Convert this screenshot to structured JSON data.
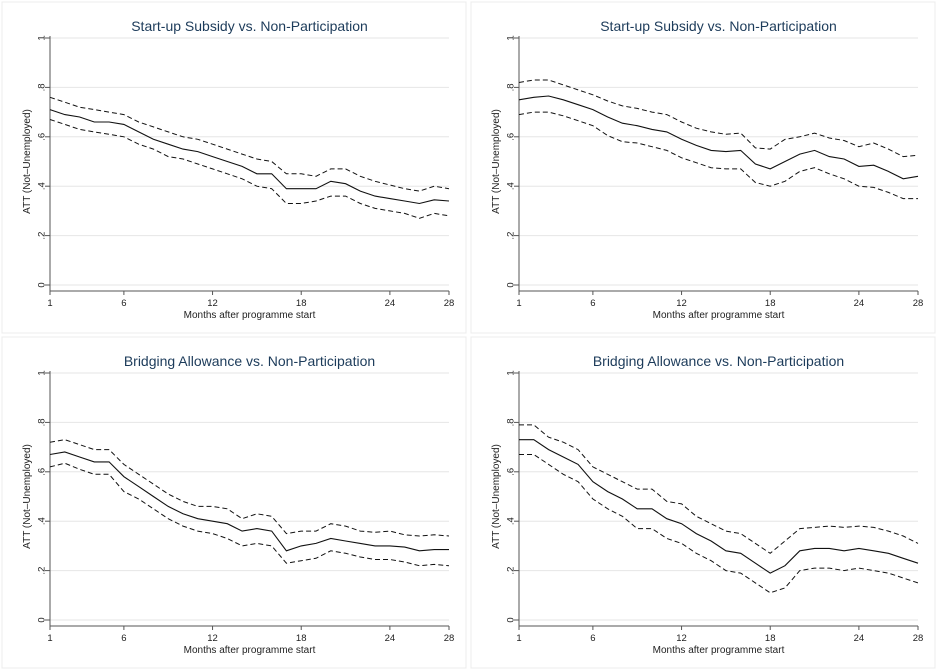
{
  "chart_data": [
    {
      "type": "line",
      "title": "Start-up Subsidy vs. Non-Participation",
      "xlabel": "Months after programme start",
      "ylabel": "ATT (Not–Unemployed)",
      "xlim": [
        1,
        28
      ],
      "ylim": [
        0,
        1
      ],
      "xticks": [
        1,
        6,
        12,
        18,
        24,
        28
      ],
      "yticks": [
        0,
        0.2,
        0.4,
        0.6,
        0.8,
        1
      ],
      "ytick_labels": [
        "0",
        ".2",
        ".4",
        ".6",
        ".8",
        "1"
      ],
      "grid": true,
      "x": [
        1,
        2,
        3,
        4,
        5,
        6,
        7,
        8,
        9,
        10,
        11,
        12,
        13,
        14,
        15,
        16,
        17,
        18,
        19,
        20,
        21,
        22,
        23,
        24,
        25,
        26,
        27,
        28
      ],
      "series": [
        {
          "role": "estimate",
          "values": [
            0.71,
            0.69,
            0.68,
            0.66,
            0.66,
            0.65,
            0.62,
            0.59,
            0.57,
            0.55,
            0.54,
            0.52,
            0.5,
            0.48,
            0.45,
            0.45,
            0.39,
            0.39,
            0.39,
            0.42,
            0.41,
            0.38,
            0.36,
            0.35,
            0.34,
            0.33,
            0.345,
            0.34
          ]
        },
        {
          "role": "upper_ci",
          "values": [
            0.76,
            0.74,
            0.72,
            0.71,
            0.7,
            0.69,
            0.66,
            0.64,
            0.62,
            0.6,
            0.59,
            0.57,
            0.55,
            0.53,
            0.51,
            0.5,
            0.45,
            0.45,
            0.44,
            0.47,
            0.47,
            0.44,
            0.42,
            0.405,
            0.39,
            0.38,
            0.4,
            0.39
          ]
        },
        {
          "role": "lower_ci",
          "values": [
            0.67,
            0.65,
            0.63,
            0.62,
            0.61,
            0.6,
            0.57,
            0.55,
            0.52,
            0.51,
            0.49,
            0.47,
            0.45,
            0.43,
            0.4,
            0.39,
            0.33,
            0.33,
            0.34,
            0.36,
            0.36,
            0.33,
            0.31,
            0.3,
            0.29,
            0.27,
            0.29,
            0.28
          ]
        }
      ]
    },
    {
      "type": "line",
      "title": "Start-up Subsidy vs. Non-Participation",
      "xlabel": "Months after programme start",
      "ylabel": "ATT (Not–Unemployed)",
      "xlim": [
        1,
        28
      ],
      "ylim": [
        0,
        1
      ],
      "xticks": [
        1,
        6,
        12,
        18,
        24,
        28
      ],
      "yticks": [
        0,
        0.2,
        0.4,
        0.6,
        0.8,
        1
      ],
      "ytick_labels": [
        "0",
        ".2",
        ".4",
        ".6",
        ".8",
        "1"
      ],
      "grid": true,
      "x": [
        1,
        2,
        3,
        4,
        5,
        6,
        7,
        8,
        9,
        10,
        11,
        12,
        13,
        14,
        15,
        16,
        17,
        18,
        19,
        20,
        21,
        22,
        23,
        24,
        25,
        26,
        27,
        28
      ],
      "series": [
        {
          "role": "estimate",
          "values": [
            0.75,
            0.76,
            0.765,
            0.75,
            0.73,
            0.71,
            0.68,
            0.655,
            0.645,
            0.63,
            0.62,
            0.59,
            0.565,
            0.545,
            0.54,
            0.545,
            0.49,
            0.47,
            0.5,
            0.53,
            0.545,
            0.52,
            0.51,
            0.48,
            0.485,
            0.46,
            0.43,
            0.44
          ]
        },
        {
          "role": "upper_ci",
          "values": [
            0.82,
            0.83,
            0.83,
            0.81,
            0.79,
            0.77,
            0.745,
            0.725,
            0.715,
            0.7,
            0.69,
            0.66,
            0.635,
            0.62,
            0.61,
            0.615,
            0.555,
            0.55,
            0.59,
            0.6,
            0.615,
            0.595,
            0.585,
            0.56,
            0.575,
            0.55,
            0.52,
            0.525
          ]
        },
        {
          "role": "lower_ci",
          "values": [
            0.69,
            0.7,
            0.7,
            0.685,
            0.665,
            0.645,
            0.605,
            0.58,
            0.575,
            0.56,
            0.545,
            0.515,
            0.495,
            0.475,
            0.47,
            0.47,
            0.415,
            0.4,
            0.42,
            0.46,
            0.475,
            0.45,
            0.43,
            0.4,
            0.395,
            0.375,
            0.35,
            0.35
          ]
        }
      ]
    },
    {
      "type": "line",
      "title": "Bridging Allowance vs. Non-Participation",
      "xlabel": "Months after programme start",
      "ylabel": "ATT (Not–Unemployed)",
      "xlim": [
        1,
        28
      ],
      "ylim": [
        0,
        1
      ],
      "xticks": [
        1,
        6,
        12,
        18,
        24,
        28
      ],
      "yticks": [
        0,
        0.2,
        0.4,
        0.6,
        0.8,
        1
      ],
      "ytick_labels": [
        "0",
        ".2",
        ".4",
        ".6",
        ".8",
        "1"
      ],
      "grid": true,
      "x": [
        1,
        2,
        3,
        4,
        5,
        6,
        7,
        8,
        9,
        10,
        11,
        12,
        13,
        14,
        15,
        16,
        17,
        18,
        19,
        20,
        21,
        22,
        23,
        24,
        25,
        26,
        27,
        28
      ],
      "series": [
        {
          "role": "estimate",
          "values": [
            0.67,
            0.68,
            0.66,
            0.64,
            0.64,
            0.58,
            0.54,
            0.5,
            0.46,
            0.43,
            0.41,
            0.4,
            0.39,
            0.36,
            0.37,
            0.36,
            0.28,
            0.3,
            0.31,
            0.33,
            0.32,
            0.31,
            0.3,
            0.3,
            0.295,
            0.28,
            0.285,
            0.285
          ]
        },
        {
          "role": "upper_ci",
          "values": [
            0.72,
            0.73,
            0.71,
            0.69,
            0.69,
            0.63,
            0.59,
            0.55,
            0.51,
            0.48,
            0.46,
            0.46,
            0.45,
            0.41,
            0.43,
            0.42,
            0.35,
            0.36,
            0.36,
            0.39,
            0.38,
            0.36,
            0.355,
            0.36,
            0.345,
            0.34,
            0.345,
            0.34
          ]
        },
        {
          "role": "lower_ci",
          "values": [
            0.62,
            0.635,
            0.61,
            0.59,
            0.59,
            0.52,
            0.49,
            0.45,
            0.41,
            0.38,
            0.36,
            0.35,
            0.33,
            0.3,
            0.31,
            0.3,
            0.23,
            0.24,
            0.25,
            0.28,
            0.27,
            0.255,
            0.245,
            0.245,
            0.235,
            0.22,
            0.225,
            0.22
          ]
        }
      ]
    },
    {
      "type": "line",
      "title": "Bridging Allowance vs. Non-Participation",
      "xlabel": "Months after programme start",
      "ylabel": "ATT (Not–Unemployed)",
      "xlim": [
        1,
        28
      ],
      "ylim": [
        0,
        1
      ],
      "xticks": [
        1,
        6,
        12,
        18,
        24,
        28
      ],
      "yticks": [
        0,
        0.2,
        0.4,
        0.6,
        0.8,
        1
      ],
      "ytick_labels": [
        "0",
        ".2",
        ".4",
        ".6",
        ".8",
        "1"
      ],
      "grid": true,
      "x": [
        1,
        2,
        3,
        4,
        5,
        6,
        7,
        8,
        9,
        10,
        11,
        12,
        13,
        14,
        15,
        16,
        17,
        18,
        19,
        20,
        21,
        22,
        23,
        24,
        25,
        26,
        27,
        28
      ],
      "series": [
        {
          "role": "estimate",
          "values": [
            0.73,
            0.73,
            0.69,
            0.66,
            0.63,
            0.56,
            0.52,
            0.49,
            0.45,
            0.45,
            0.41,
            0.39,
            0.35,
            0.32,
            0.28,
            0.27,
            0.23,
            0.19,
            0.22,
            0.28,
            0.29,
            0.29,
            0.28,
            0.29,
            0.28,
            0.27,
            0.25,
            0.23
          ]
        },
        {
          "role": "upper_ci",
          "values": [
            0.79,
            0.79,
            0.74,
            0.72,
            0.69,
            0.62,
            0.59,
            0.56,
            0.53,
            0.53,
            0.48,
            0.47,
            0.42,
            0.39,
            0.36,
            0.35,
            0.31,
            0.27,
            0.32,
            0.37,
            0.375,
            0.38,
            0.375,
            0.38,
            0.375,
            0.36,
            0.34,
            0.31
          ]
        },
        {
          "role": "lower_ci",
          "values": [
            0.67,
            0.67,
            0.63,
            0.59,
            0.56,
            0.49,
            0.45,
            0.42,
            0.37,
            0.37,
            0.33,
            0.31,
            0.27,
            0.24,
            0.2,
            0.19,
            0.15,
            0.11,
            0.13,
            0.2,
            0.21,
            0.21,
            0.2,
            0.21,
            0.2,
            0.19,
            0.17,
            0.15
          ]
        }
      ]
    }
  ]
}
